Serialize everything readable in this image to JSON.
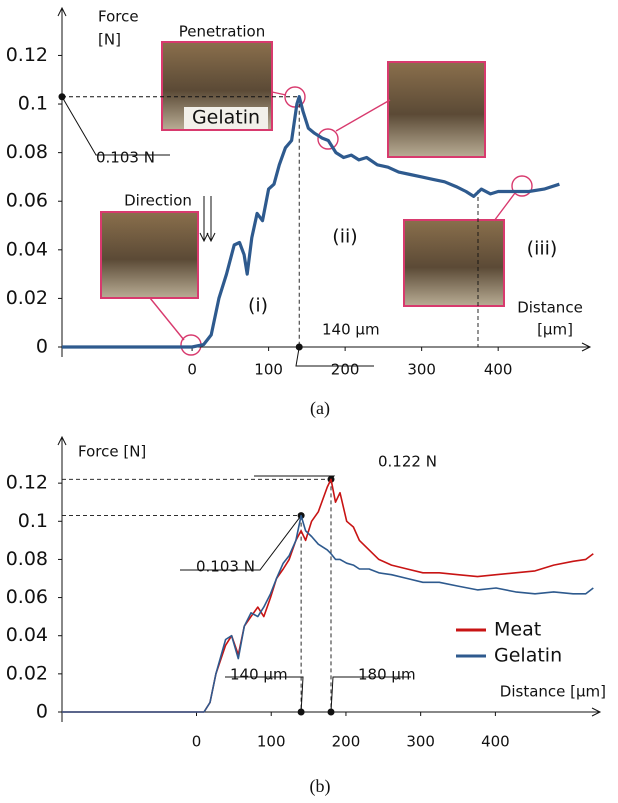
{
  "chart_data": [
    {
      "type": "line",
      "caption": "(a)",
      "y_label": "Force",
      "y_unit": "[N]",
      "x_label": "Distance",
      "x_unit": "[μm]",
      "xlim": [
        -170,
        520
      ],
      "ylim": [
        0,
        0.135
      ],
      "xticks": [
        0,
        100,
        200,
        300,
        400
      ],
      "yticks": [
        0,
        0.02,
        0.04,
        0.06,
        0.08,
        0.1,
        0.12
      ],
      "x": [
        -170,
        0,
        15,
        25,
        35,
        45,
        55,
        62,
        68,
        72,
        78,
        85,
        92,
        100,
        107,
        114,
        122,
        130,
        137,
        140,
        145,
        152,
        160,
        170,
        178,
        188,
        198,
        208,
        218,
        228,
        242,
        256,
        270,
        285,
        300,
        315,
        330,
        345,
        358,
        368,
        378,
        390,
        400,
        420,
        440,
        460,
        480
      ],
      "series": [
        {
          "color": "#2e5a8e",
          "values": [
            0,
            0,
            0.001,
            0.005,
            0.02,
            0.03,
            0.042,
            0.043,
            0.038,
            0.03,
            0.045,
            0.055,
            0.052,
            0.065,
            0.067,
            0.075,
            0.082,
            0.085,
            0.1,
            0.103,
            0.097,
            0.09,
            0.088,
            0.086,
            0.085,
            0.08,
            0.078,
            0.079,
            0.077,
            0.078,
            0.075,
            0.074,
            0.072,
            0.071,
            0.07,
            0.069,
            0.068,
            0.066,
            0.064,
            0.062,
            0.065,
            0.063,
            0.064,
            0.064,
            0.064,
            0.065,
            0.067
          ]
        }
      ],
      "annotations": [
        "Penetration",
        "Gelatin",
        "Direction",
        "(i)",
        "(ii)",
        "(iii)"
      ],
      "markers": [
        {
          "x": 140,
          "y": 0.103,
          "x_label": "140 μm",
          "y_label": "0.103 N"
        }
      ]
    },
    {
      "type": "line",
      "caption": "(b)",
      "y_label": "Force [N]",
      "x_label": "Distance [μm]",
      "legend": "lower right",
      "xlim": [
        -180,
        540
      ],
      "ylim": [
        0,
        0.14
      ],
      "xticks": [
        0,
        100,
        200,
        300,
        400
      ],
      "yticks": [
        0,
        0.02,
        0.04,
        0.06,
        0.08,
        0.1,
        0.12
      ],
      "x": [
        -180,
        0,
        10,
        18,
        26,
        39,
        47,
        56,
        64,
        73,
        82,
        90,
        99,
        107,
        116,
        124,
        133,
        140,
        146,
        154,
        163,
        175,
        180,
        186,
        192,
        201,
        210,
        218,
        231,
        244,
        261,
        282,
        303,
        325,
        350,
        376,
        401,
        427,
        453,
        478,
        504,
        521,
        531
      ],
      "series": [
        {
          "name": "Meat",
          "color": "#c81414",
          "values": [
            0,
            0,
            0,
            0.005,
            0.02,
            0.035,
            0.04,
            0.03,
            0.045,
            0.05,
            0.055,
            0.05,
            0.06,
            0.07,
            0.075,
            0.08,
            0.09,
            0.095,
            0.09,
            0.1,
            0.105,
            0.118,
            0.122,
            0.11,
            0.115,
            0.1,
            0.097,
            0.09,
            0.085,
            0.08,
            0.077,
            0.075,
            0.073,
            0.073,
            0.072,
            0.071,
            0.072,
            0.073,
            0.074,
            0.077,
            0.079,
            0.08,
            0.083
          ]
        },
        {
          "name": "Gelatin",
          "color": "#2e5a8e",
          "values": [
            0,
            0,
            0,
            0.005,
            0.02,
            0.038,
            0.04,
            0.028,
            0.045,
            0.052,
            0.05,
            0.055,
            0.062,
            0.07,
            0.078,
            0.082,
            0.09,
            0.103,
            0.095,
            0.092,
            0.088,
            0.085,
            0.083,
            0.08,
            0.08,
            0.078,
            0.077,
            0.075,
            0.075,
            0.073,
            0.072,
            0.07,
            0.068,
            0.068,
            0.066,
            0.064,
            0.065,
            0.063,
            0.062,
            0.063,
            0.062,
            0.062,
            0.065
          ]
        }
      ],
      "markers": [
        {
          "x": 140,
          "y": 0.103,
          "x_label": "140 μm",
          "y_label": "0.103 N"
        },
        {
          "x": 180,
          "y": 0.122,
          "x_label": "180 μm",
          "y_label": "0.122 N"
        }
      ]
    }
  ]
}
